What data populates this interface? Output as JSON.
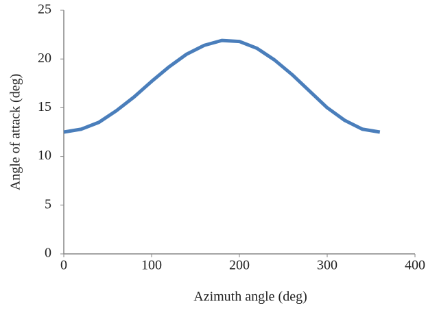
{
  "chart_data": {
    "type": "line",
    "x_label": "Azimuth angle (deg)",
    "y_label": "Angle of attack (deg)",
    "x": [
      0,
      20,
      40,
      60,
      80,
      100,
      120,
      140,
      160,
      180,
      200,
      220,
      240,
      260,
      280,
      300,
      320,
      340,
      360
    ],
    "series": [
      {
        "name": "Angle of attack",
        "color": "#4a7ebb",
        "values": [
          12.5,
          12.8,
          13.5,
          14.7,
          16.1,
          17.7,
          19.2,
          20.5,
          21.4,
          21.9,
          21.8,
          21.1,
          19.9,
          18.4,
          16.7,
          15.0,
          13.7,
          12.8,
          12.5
        ]
      }
    ],
    "xlim": [
      0,
      400
    ],
    "xticks": [
      0,
      100,
      200,
      300,
      400
    ],
    "ylim": [
      0,
      25
    ],
    "yticks": [
      0,
      5,
      10,
      15,
      20,
      25
    ],
    "grid": false
  }
}
